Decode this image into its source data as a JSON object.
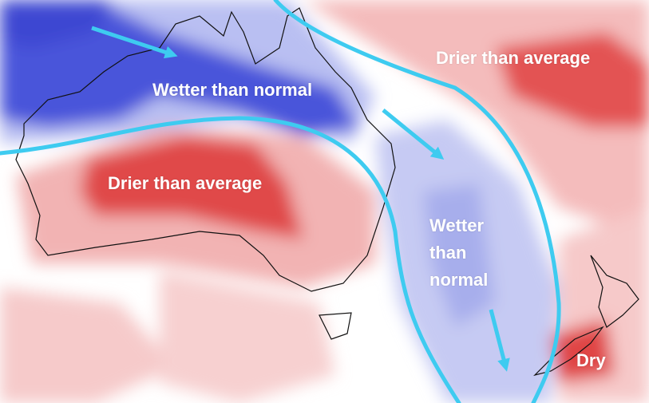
{
  "labels": [
    "Wetter than normal",
    "Drier than average",
    "Drier than average",
    "Wetter than normal",
    "Dry"
  ]
}
